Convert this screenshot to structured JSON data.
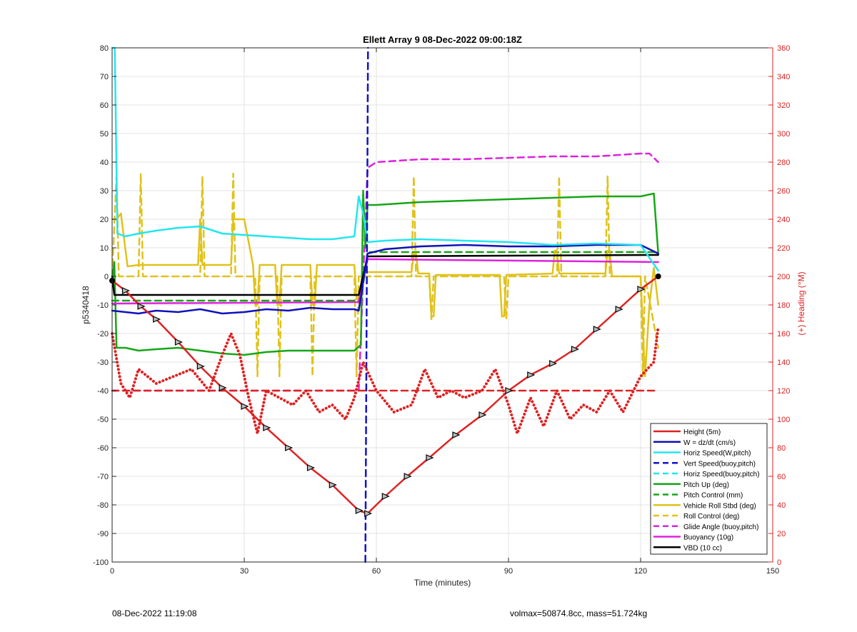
{
  "footer": {
    "timestamp": "08-Dec-2022 11:19:08",
    "info": "volmax=50874.8cc, mass=51.724kg"
  },
  "chart_data": {
    "type": "line",
    "title": "Ellett Array 9 08-Dec-2022 09:00:18Z",
    "xlabel": "Time (minutes)",
    "ylabel": "p5340418",
    "ylabel_right": "(+) Heading (°M)",
    "xlim": [
      0,
      150
    ],
    "ylim": [
      -100,
      80
    ],
    "ylim_right": [
      0,
      360
    ],
    "x_ticks": [
      0,
      30,
      60,
      90,
      120,
      150
    ],
    "y_ticks": [
      -100,
      -90,
      -80,
      -70,
      -60,
      -50,
      -40,
      -30,
      -20,
      -10,
      0,
      10,
      20,
      30,
      40,
      50,
      60,
      70,
      80
    ],
    "y_ticks_right": [
      0,
      20,
      40,
      60,
      80,
      100,
      120,
      140,
      160,
      180,
      200,
      220,
      240,
      260,
      280,
      300,
      320,
      340,
      360
    ],
    "grid": true,
    "legend_position": "bottom-right",
    "colors": {
      "right_axis": "#dd2222"
    },
    "series": [
      {
        "name": "Height (5m)",
        "color": "#dd2222",
        "style": "solid",
        "markers": "triangle",
        "x": [
          0,
          3,
          6.5,
          10,
          15,
          20,
          25,
          30,
          35,
          40,
          45,
          50,
          56,
          58,
          62,
          67,
          72,
          78,
          84,
          90,
          95,
          100,
          105,
          110,
          115,
          120,
          124
        ],
        "y": [
          -1.5,
          -5,
          -10.5,
          -15,
          -23,
          -31.5,
          -39,
          -45.5,
          -53,
          -60,
          -67,
          -73,
          -82,
          -83,
          -77,
          -70,
          -63.5,
          -55.5,
          -48.5,
          -40,
          -34.5,
          -30.5,
          -25.5,
          -18.5,
          -11.5,
          -4.5,
          0
        ]
      },
      {
        "name": "W = dz/dt (cm/s)",
        "color": "#1111bb",
        "style": "solid",
        "x": [
          0,
          3,
          6,
          10,
          15,
          20,
          25,
          30,
          35,
          40,
          45,
          50,
          55,
          56,
          58,
          62,
          70,
          80,
          90,
          100,
          110,
          120,
          124
        ],
        "y": [
          -12,
          -12.5,
          -13,
          -12,
          -12.5,
          -11.5,
          -13,
          -12.5,
          -11.5,
          -12,
          -11,
          -11.5,
          -11.5,
          -12,
          8,
          9.5,
          10.5,
          11,
          10.5,
          10.5,
          11,
          11,
          8
        ]
      },
      {
        "name": "Horiz Speed(W,pitch)",
        "color": "#22e6ee",
        "style": "solid",
        "x": [
          0,
          0.6,
          1.2,
          3,
          6,
          10,
          15,
          20,
          25,
          30,
          35,
          40,
          45,
          50,
          55,
          56,
          57,
          58,
          62,
          70,
          80,
          90,
          100,
          110,
          120,
          124
        ],
        "y": [
          80,
          80,
          15,
          14,
          15,
          16,
          17,
          17.5,
          15,
          14.5,
          14,
          13.5,
          13,
          13,
          14,
          28,
          22,
          12,
          12.5,
          13,
          12.5,
          12,
          11,
          11.5,
          11,
          2
        ]
      },
      {
        "name": "Vert Speed(buoy,pitch)",
        "color": "#1111cc",
        "style": "dash",
        "x": [
          57.5,
          58.1
        ],
        "y": [
          -100,
          80
        ]
      },
      {
        "name": "Horiz Speed(buoy,pitch)",
        "color": "#22e6ee",
        "style": "dash",
        "x": [],
        "y": []
      },
      {
        "name": "Pitch Up (deg)",
        "color": "#16a616",
        "style": "solid",
        "x": [
          0,
          0.5,
          1,
          3,
          6,
          10,
          15,
          20,
          25,
          30,
          35,
          40,
          45,
          50,
          55,
          56.5,
          57,
          57.5,
          58,
          60,
          70,
          80,
          90,
          100,
          110,
          120,
          123,
          124
        ],
        "y": [
          -2,
          5,
          -25,
          -25,
          -26,
          -25.5,
          -25,
          -26,
          -27,
          -27.5,
          -26.5,
          -26,
          -26,
          -26,
          -26,
          -24,
          30,
          10,
          25,
          25,
          26,
          26.5,
          27,
          27.5,
          28,
          28,
          29,
          8
        ]
      },
      {
        "name": "Pitch Control (mm)",
        "color": "#16a616",
        "style": "dash",
        "x": [
          0,
          56.5,
          58,
          124
        ],
        "y": [
          -8.5,
          -8.5,
          8.5,
          8.5
        ]
      },
      {
        "name": "Vehicle Roll Stbd (deg)",
        "color": "#e0c21c",
        "style": "solid",
        "x": [
          0,
          1,
          2,
          3.5,
          6,
          19.5,
          20,
          20.5,
          27,
          27.5,
          30,
          32,
          32.5,
          33,
          33.5,
          37,
          37.5,
          38,
          38.5,
          45,
          45.5,
          46,
          46.5,
          55,
          55.5,
          56,
          57,
          58,
          68,
          68.5,
          69,
          69.5,
          72,
          72.5,
          73,
          73.5,
          88,
          88.5,
          89,
          89.5,
          100,
          100.5,
          101,
          101.5,
          112,
          112.5,
          113,
          113.5,
          120,
          121,
          122,
          123,
          124
        ],
        "y": [
          20,
          20,
          22,
          3.5,
          4,
          4,
          20,
          4,
          4,
          20,
          20,
          4,
          -10,
          -10,
          4,
          4,
          -10,
          -10,
          4,
          4,
          -10,
          -10,
          4,
          4,
          -8,
          -8,
          2,
          1.5,
          1.5,
          8,
          8,
          1,
          1,
          -14,
          -14,
          0.5,
          0.5,
          -14,
          -14,
          0.5,
          1,
          9,
          9,
          1,
          1,
          9,
          9,
          0,
          0,
          -35,
          -10,
          3,
          -10
        ]
      },
      {
        "name": "Roll Control (deg)",
        "color": "#e0c21c",
        "style": "dash",
        "x": [
          0,
          1,
          1.5,
          6,
          6.5,
          7,
          20,
          20.5,
          21,
          27,
          27.5,
          28,
          32.5,
          33,
          33.5,
          37.5,
          38,
          38.5,
          45,
          45.5,
          46,
          55,
          55.5,
          56,
          68,
          68.5,
          69,
          72,
          72.5,
          73,
          89,
          89.5,
          90,
          101,
          101.5,
          102,
          112,
          112.5,
          113,
          120,
          120.5,
          121,
          124
        ],
        "y": [
          0,
          36,
          0,
          0,
          36,
          0,
          0,
          35,
          0,
          0,
          36,
          0,
          0,
          -35,
          0,
          0,
          -35,
          0,
          0,
          -35,
          0,
          0,
          -35,
          0,
          0,
          35,
          0,
          0,
          -15,
          0,
          0,
          -15,
          0,
          0,
          35,
          0,
          0,
          35,
          0,
          0,
          -35,
          0,
          -25
        ]
      },
      {
        "name": "Glide Angle (buoy,pitch)",
        "color": "#dd22dd",
        "style": "dash",
        "x": [
          0,
          56,
          58,
          60,
          70,
          80,
          90,
          100,
          110,
          120,
          122,
          124
        ],
        "y": [
          -40,
          -40,
          38,
          40,
          41,
          41,
          41.5,
          42,
          42,
          43,
          43,
          40
        ]
      },
      {
        "name": "Buoyancy (10g)",
        "color": "#dd22dd",
        "style": "solid",
        "x": [
          0,
          56,
          58,
          60,
          124
        ],
        "y": [
          -9.5,
          -9,
          6,
          6,
          5
        ]
      },
      {
        "name": "VBD (10 cc)",
        "color": "#000000",
        "style": "solid",
        "x": [
          0,
          0.5,
          56,
          58,
          124
        ],
        "y": [
          0,
          -6.5,
          -6.5,
          7,
          7.5
        ]
      },
      {
        "name": "Heading",
        "axis": "right",
        "color": "#dd2222",
        "style": "dotted",
        "x": [
          0,
          2,
          4,
          6,
          10,
          14,
          18,
          22,
          25,
          27,
          29,
          31,
          33,
          35,
          38,
          41,
          44,
          47,
          50,
          53,
          55,
          57,
          60,
          64,
          68,
          71,
          74,
          77,
          80,
          84,
          87,
          90,
          92,
          95,
          98,
          101,
          104,
          107,
          110,
          113,
          116,
          120,
          123,
          124
        ],
        "y": [
          160,
          125,
          115,
          135,
          125,
          130,
          135,
          120,
          145,
          160,
          145,
          115,
          90,
          120,
          115,
          110,
          120,
          105,
          110,
          100,
          115,
          140,
          120,
          105,
          110,
          135,
          115,
          120,
          115,
          120,
          135,
          110,
          90,
          115,
          95,
          120,
          100,
          110,
          105,
          120,
          105,
          130,
          140,
          165
        ]
      },
      {
        "name": "Heading target",
        "axis": "right",
        "color": "#dd2222",
        "style": "dash",
        "x": [
          0,
          124
        ],
        "y": [
          120,
          120
        ]
      }
    ]
  }
}
